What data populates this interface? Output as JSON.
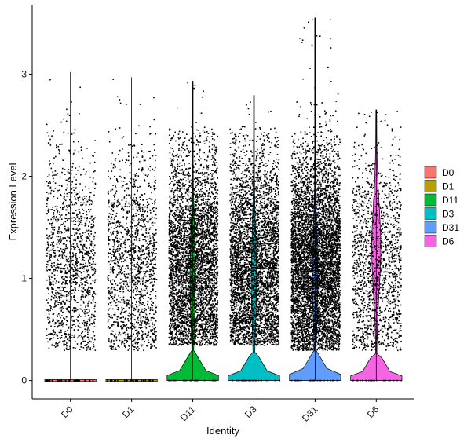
{
  "chart_data": {
    "type": "violin",
    "xlabel": "Identity",
    "ylabel": "Expression Level",
    "ylim": [
      -0.18,
      3.68
    ],
    "y_ticks": [
      0,
      1,
      2,
      3
    ],
    "categories": [
      "D0",
      "D1",
      "D11",
      "D3",
      "D31",
      "D6"
    ],
    "series": [
      {
        "name": "D0",
        "color": "#F8766D",
        "max": 3.02,
        "n_points": 1400,
        "violin_max_width": 0.42,
        "point_min": 0.3,
        "point_max": 2.55
      },
      {
        "name": "D1",
        "color": "#B79F00",
        "max": 2.97,
        "n_points": 1500,
        "violin_max_width": 0.42,
        "point_min": 0.3,
        "point_max": 2.5
      },
      {
        "name": "D11",
        "color": "#00BA38",
        "max": 2.93,
        "n_points": 4200,
        "violin_max_width": 0.42,
        "point_min": 0.35,
        "point_max": 2.5
      },
      {
        "name": "D3",
        "color": "#00BFC4",
        "max": 2.79,
        "n_points": 4200,
        "violin_max_width": 0.42,
        "point_min": 0.35,
        "point_max": 2.5
      },
      {
        "name": "D31",
        "color": "#619CFF",
        "max": 3.55,
        "n_points": 6000,
        "violin_max_width": 0.42,
        "point_min": 0.3,
        "point_max": 2.75
      },
      {
        "name": "D6",
        "color": "#F564E3",
        "max": 2.65,
        "n_points": 1500,
        "violin_max_width": 0.42,
        "point_min": 0.3,
        "point_max": 2.55
      }
    ],
    "legend": {
      "position": "right",
      "entries": [
        "D0",
        "D1",
        "D11",
        "D3",
        "D31",
        "D6"
      ]
    },
    "grid": false
  }
}
